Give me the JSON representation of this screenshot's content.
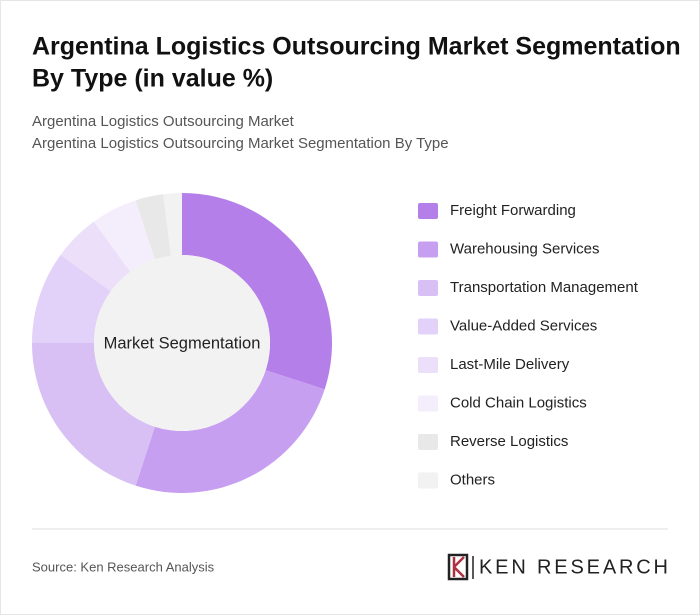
{
  "chart_data": {
    "type": "donut",
    "title": [
      "Argentina Logistics Outsourcing Market Segmentation",
      "By Type (in value %)"
    ],
    "subtitle": [
      "Argentina Logistics Outsourcing Market",
      "Argentina Logistics Outsourcing Market Segmentation By Type"
    ],
    "center_label": "Market Segmentation",
    "categories": [
      "Freight Forwarding",
      "Warehousing Services",
      "Transportation Management",
      "Value-Added Services",
      "Last-Mile Delivery",
      "Cold Chain Logistics",
      "Reverse Logistics",
      "Others"
    ],
    "values": [
      30,
      25,
      20,
      10,
      5,
      5,
      3,
      2
    ],
    "colors": [
      "#b57fea",
      "#c79ff0",
      "#d8c0f5",
      "#e2d1f8",
      "#ecdffa",
      "#f4eefc",
      "#e8e8e8",
      "#f2f2f2"
    ],
    "source": "Source: Ken Research Analysis",
    "brand": "KEN RESEARCH"
  }
}
